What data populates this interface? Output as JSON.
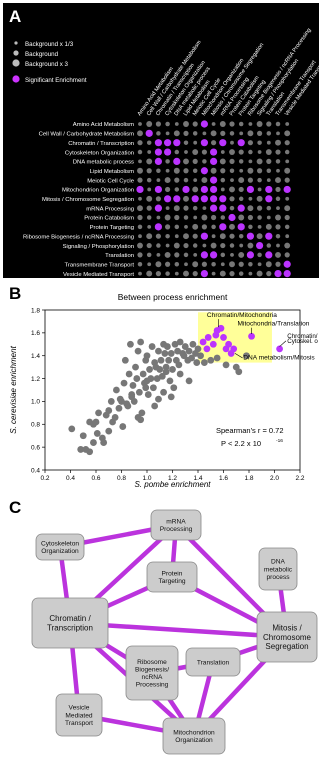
{
  "panelA": {
    "letter": "A",
    "legend": [
      {
        "label": "Background x 1/3",
        "size": "small",
        "color": "#bbbbbb"
      },
      {
        "label": "Background",
        "size": "medium",
        "color": "#bbbbbb"
      },
      {
        "label": "Background x 3",
        "size": "large",
        "color": "#bbbbbb"
      },
      {
        "label": "Significant Enrichment",
        "size": "large",
        "color": "#cc33ff"
      }
    ],
    "processes": [
      "Amino Acid Metabolism",
      "Cell Wall / Carbohydrate Metabolism",
      "Chromatin / Transcription",
      "Cytoskeleton Organization",
      "DNA metabolic process",
      "Lipid Metabolism",
      "Meiotic Cell Cycle",
      "Mitochondrion Organization",
      "Mitosis / Chromosome Segregation",
      "mRNA Processing",
      "Protein Catabolism",
      "Protein Targeting",
      "Ribosome Biogenesis / ncRNA Processing",
      "Signaling / Phosphorylation",
      "Translation",
      "Transmembrane Transport",
      "Vesicle Mediated Transport"
    ],
    "colors": {
      "background": "#777777",
      "significant": "#bb33ff",
      "text": "#ffffff"
    }
  },
  "chart_data": {
    "type": "scatter",
    "title": "Between process enrichment",
    "xlabel": "S. pombe enrichment",
    "ylabel": "S. cerevisiae enrichment",
    "xlim": [
      0.2,
      2.2
    ],
    "ylim": [
      0.4,
      1.8
    ],
    "xticks": [
      "0.2",
      "0.4",
      "0.6",
      "0.8",
      "1.0",
      "1.2",
      "1.4",
      "1.6",
      "1.8",
      "2.0",
      "2.2"
    ],
    "yticks": [
      "0.4",
      "0.6",
      "0.8",
      "1.0",
      "1.2",
      "1.4",
      "1.6",
      "1.8"
    ],
    "stat_line1": "Spearman's r =  0.72",
    "stat_line2": "P < 2.2 x 10",
    "stat_exponent": "-16",
    "highlight_box": {
      "x": [
        1.4,
        1.98
      ],
      "y": [
        1.34,
        1.78
      ],
      "color": "#ffff99"
    },
    "annotations": [
      {
        "text": "Chromatin/Mitochondria",
        "x": 1.56,
        "y": 1.63
      },
      {
        "text": "Mitochondria/Translation",
        "x": 1.82,
        "y": 1.57
      },
      {
        "text": "DNA metabolism/Mitosis",
        "x": 1.69,
        "y": 1.4
      },
      {
        "text": "Chromatin/",
        "x": 2.04,
        "y": 1.46
      },
      {
        "text": "Cytoskel. o",
        "x": 2.04,
        "y": 1.46
      }
    ],
    "series": [
      {
        "color": "#777777",
        "x": [
          0.41,
          0.48,
          0.5,
          0.55,
          0.55,
          0.58,
          0.58,
          0.6,
          0.61,
          0.62,
          0.65,
          0.68,
          0.7,
          0.7,
          0.72,
          0.73,
          0.75,
          0.76,
          0.78,
          0.8,
          0.81,
          0.82,
          0.83,
          0.85,
          0.86,
          0.87,
          0.88,
          0.89,
          0.9,
          0.91,
          0.92,
          0.93,
          0.94,
          0.95,
          0.96,
          0.97,
          0.98,
          0.99,
          1.0,
          1.01,
          1.02,
          1.03,
          1.04,
          1.05,
          1.06,
          1.07,
          1.08,
          1.09,
          1.1,
          1.11,
          1.12,
          1.13,
          1.14,
          1.15,
          1.16,
          1.17,
          1.18,
          1.19,
          1.2,
          1.21,
          1.22,
          1.23,
          1.24,
          1.25,
          1.26,
          1.28,
          1.29,
          1.3,
          1.32,
          1.33,
          1.35,
          1.36,
          1.38,
          1.39,
          1.4,
          1.42,
          1.45,
          1.5,
          1.55,
          1.62,
          1.7,
          1.72,
          1.78,
          0.52,
          0.66,
          0.79,
          0.84,
          0.93,
          1.0,
          1.06,
          1.13,
          1.19,
          1.26,
          1.33,
          0.88,
          0.99,
          1.09,
          1.15,
          0.95
        ],
        "y": [
          0.76,
          0.58,
          0.7,
          0.82,
          0.56,
          0.8,
          0.64,
          0.82,
          0.72,
          0.9,
          0.68,
          0.88,
          0.92,
          0.74,
          1.0,
          0.82,
          0.86,
          1.1,
          0.94,
          1.0,
          0.78,
          1.16,
          1.36,
          0.96,
          1.24,
          1.5,
          1.06,
          1.14,
          1.0,
          1.3,
          1.2,
          1.44,
          1.08,
          1.52,
          0.9,
          1.24,
          1.16,
          1.36,
          1.4,
          1.06,
          1.28,
          1.2,
          1.48,
          1.12,
          1.34,
          1.3,
          1.2,
          1.44,
          1.28,
          1.36,
          1.22,
          1.5,
          1.42,
          1.3,
          1.48,
          1.36,
          1.18,
          1.42,
          1.28,
          1.12,
          1.5,
          1.36,
          1.44,
          1.32,
          1.52,
          1.42,
          1.4,
          1.48,
          1.36,
          1.44,
          1.38,
          1.5,
          1.42,
          1.34,
          1.46,
          1.4,
          1.34,
          1.36,
          1.38,
          1.32,
          1.3,
          1.26,
          1.4,
          0.58,
          0.64,
          1.02,
          0.98,
          0.86,
          1.18,
          0.96,
          1.08,
          1.04,
          1.24,
          1.18,
          1.04,
          1.12,
          1.02,
          1.26,
          0.84
        ]
      },
      {
        "color": "#bb33ff",
        "x": [
          1.44,
          1.47,
          1.52,
          1.55,
          1.58,
          1.6,
          1.62,
          1.64,
          1.66,
          1.68,
          1.54,
          1.48,
          1.82,
          2.04
        ],
        "y": [
          1.52,
          1.46,
          1.5,
          1.62,
          1.64,
          1.56,
          1.46,
          1.5,
          1.42,
          1.46,
          1.58,
          1.56,
          1.57,
          1.46
        ]
      }
    ]
  },
  "panelC": {
    "letter": "C",
    "nodes": [
      {
        "id": "mrna",
        "lines": [
          "mRNA",
          "Processing"
        ]
      },
      {
        "id": "cyto",
        "lines": [
          "Cytoskeleton",
          "Organization"
        ]
      },
      {
        "id": "dna",
        "lines": [
          "DNA",
          "metabolic",
          "process"
        ]
      },
      {
        "id": "target",
        "lines": [
          "Protein",
          "Targeting"
        ]
      },
      {
        "id": "chrom",
        "lines": [
          "Chromatin /",
          "Transcription"
        ]
      },
      {
        "id": "mitosis",
        "lines": [
          "Mitosis /",
          "Chromosome",
          "Segregation"
        ]
      },
      {
        "id": "ribo",
        "lines": [
          "Ribosome",
          "Biogenesis/",
          "ncRNA",
          "Processing"
        ]
      },
      {
        "id": "trans",
        "lines": [
          "Translation"
        ]
      },
      {
        "id": "vesicle",
        "lines": [
          "Vesicle",
          "Mediated",
          "Transport"
        ]
      },
      {
        "id": "mito",
        "lines": [
          "Mitochondrion",
          "Organization"
        ]
      }
    ],
    "edges": [
      [
        "mrna",
        "cyto"
      ],
      [
        "mrna",
        "chrom"
      ],
      [
        "mrna",
        "mitosis"
      ],
      [
        "mrna",
        "target"
      ],
      [
        "cyto",
        "chrom"
      ],
      [
        "target",
        "chrom"
      ],
      [
        "target",
        "mitosis"
      ],
      [
        "chrom",
        "mitosis"
      ],
      [
        "chrom",
        "ribo"
      ],
      [
        "chrom",
        "mito"
      ],
      [
        "chrom",
        "vesicle"
      ],
      [
        "dna",
        "mitosis"
      ],
      [
        "mitosis",
        "trans"
      ],
      [
        "mitosis",
        "mito"
      ],
      [
        "ribo",
        "trans"
      ],
      [
        "ribo",
        "mito"
      ],
      [
        "trans",
        "mito"
      ],
      [
        "vesicle",
        "mito"
      ]
    ],
    "colors": {
      "edge": "#bb33dd",
      "node_fill": "#cccccc",
      "node_stroke": "#888888"
    }
  }
}
